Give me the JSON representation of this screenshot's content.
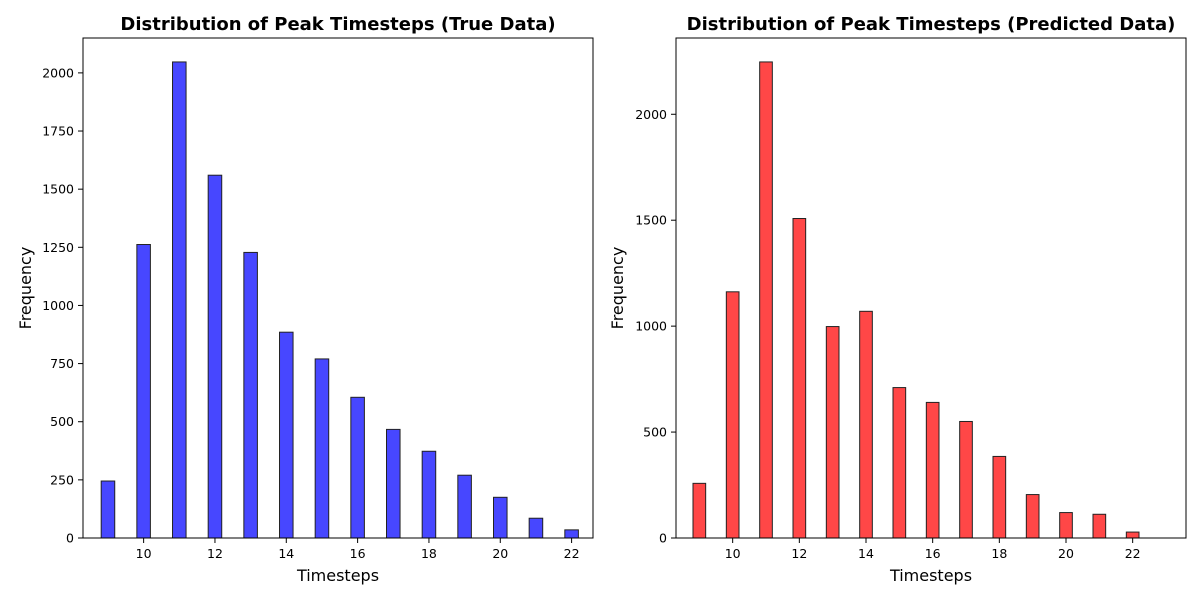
{
  "chart_data": [
    {
      "type": "bar",
      "title": "Distribution of Peak Timesteps (True Data)",
      "xlabel": "Timesteps",
      "ylabel": "Frequency",
      "x": [
        9,
        10,
        11,
        12,
        13,
        14,
        15,
        16,
        17,
        18,
        19,
        20,
        21,
        22
      ],
      "values": [
        245,
        1262,
        2047,
        1560,
        1228,
        885,
        770,
        605,
        467,
        373,
        270,
        175,
        85,
        35
      ],
      "xlim": [
        8.3,
        22.6
      ],
      "ylim": [
        0,
        2150
      ],
      "xticks": [
        10,
        12,
        14,
        16,
        18,
        20,
        22
      ],
      "yticks": [
        0,
        250,
        500,
        750,
        1000,
        1250,
        1500,
        1750,
        2000
      ],
      "color": "#4747ff",
      "edgecolor": "#222222",
      "grid": false,
      "legend": "none"
    },
    {
      "type": "bar",
      "title": "Distribution of Peak Timesteps (Predicted Data)",
      "xlabel": "Timesteps",
      "ylabel": "Frequency",
      "x": [
        9,
        10,
        11,
        12,
        13,
        14,
        15,
        16,
        17,
        18,
        19,
        20,
        21,
        22
      ],
      "values": [
        258,
        1162,
        2247,
        1508,
        998,
        1070,
        710,
        640,
        550,
        385,
        205,
        120,
        112,
        28
      ],
      "xlim": [
        8.3,
        23.6
      ],
      "ylim": [
        0,
        2360
      ],
      "xticks": [
        10,
        12,
        14,
        16,
        18,
        20,
        22
      ],
      "yticks": [
        0,
        500,
        1000,
        1500,
        2000
      ],
      "color": "#ff4747",
      "edgecolor": "#222222",
      "grid": false,
      "legend": "none"
    }
  ]
}
